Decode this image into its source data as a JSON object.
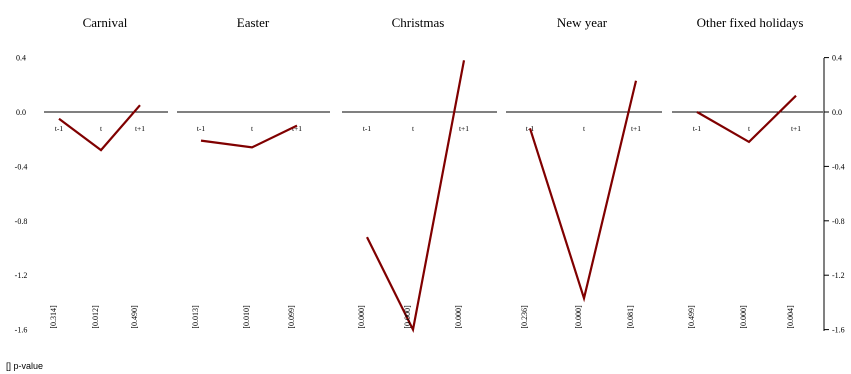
{
  "chart_data": {
    "type": "line",
    "title_clipped": "",
    "footnote": "[] p-value",
    "y_ticks": [
      "0.4",
      "0.0",
      "-0.4",
      "-0.8",
      "-1.2",
      "-1.6"
    ],
    "ylim": [
      -1.6,
      0.4
    ],
    "line_color": "#800000",
    "x_labels": [
      "t-1",
      "t",
      "t+1"
    ],
    "panels": [
      {
        "title": "Carnival",
        "values": [
          -0.05,
          -0.28,
          0.05
        ],
        "pvalues": [
          "[0.314]",
          "[0.012]",
          "[0.490]"
        ]
      },
      {
        "title": "Easter",
        "values": [
          -0.21,
          -0.26,
          -0.1
        ],
        "pvalues": [
          "[0.013]",
          "[0.010]",
          "[0.099]"
        ]
      },
      {
        "title": "Christmas",
        "values": [
          -0.92,
          -1.6,
          0.38
        ],
        "pvalues": [
          "[0.000]",
          "[0.000]",
          "[0.000]"
        ]
      },
      {
        "title": "New year",
        "values": [
          -0.12,
          -1.37,
          0.23
        ],
        "pvalues": [
          "[0.236]",
          "[0.000]",
          "[0.081]"
        ]
      },
      {
        "title": "Other fixed  holidays",
        "values": [
          0.0,
          -0.22,
          0.12
        ],
        "pvalues": [
          "[0.499]",
          "[0.000]",
          "[0.004]"
        ]
      }
    ]
  }
}
